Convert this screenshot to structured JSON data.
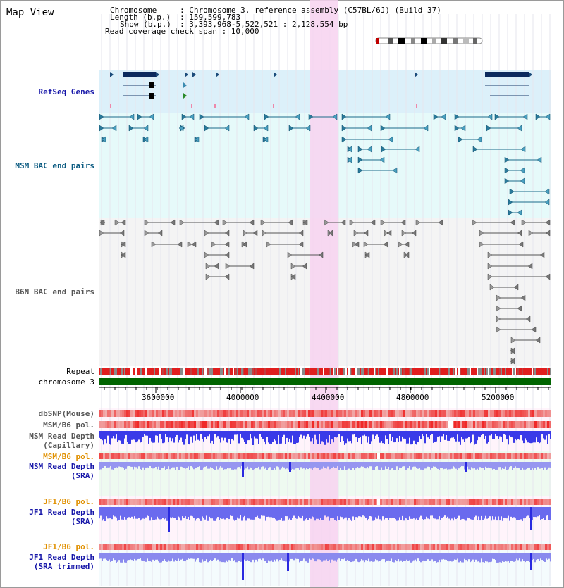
{
  "page_title": "Map View",
  "info": {
    "chromosome_key": "Chromosome",
    "chromosome_val": ": Chromosome 3, reference assembly (C57BL/6J) (Build 37)",
    "length_key": "Length (b.p.)",
    "length_val": ": 159,599,783",
    "show_key": "Show (b.p.)",
    "show_val": ": 3,393,968-5,522,521 : 2,128,554 bp",
    "read_cov": "Read coverage check span : 10,000"
  },
  "tracks": {
    "refseq": "RefSeq Genes",
    "msm_bac": "MSM BAC end pairs",
    "b6n_bac": "B6N BAC end pairs",
    "repeat": "Repeat",
    "chromosome": "chromosome 3",
    "dbsnp": "dbSNP(Mouse)",
    "msm_b6_pol_1": "MSM/B6 pol.",
    "msm_depth_cap_1": "MSM Read Depth",
    "msm_depth_cap_2": "(Capillary)",
    "msm_b6_pol_2": "MSM/B6 pol.",
    "msm_depth_sra_1": "MSM Read Depth",
    "msm_depth_sra_2": "(SRA)",
    "jf1_b6_pol_1": "JF1/B6 pol.",
    "jf1_depth_sra_1": "JF1 Read Depth",
    "jf1_depth_sra_2": "(SRA)",
    "jf1_b6_pol_2": "JF1/B6 pol.",
    "jf1_depth_trim_1": "JF1 Read Depth",
    "jf1_depth_trim_2": "(SRA trimmed)"
  },
  "axis": {
    "ticks": [
      "3600000",
      "4000000",
      "4400000",
      "4800000",
      "5200000"
    ]
  },
  "colors": {
    "refseq_bg": "#dcf0fa",
    "msm_bg": "#e6fafa",
    "b6n_bg": "#f4f4f4",
    "highlight": "#f7d2f0",
    "chromosome_bar": "#006400",
    "depth_blue": "#2828e6",
    "depth_light": "#8a8aee",
    "pol_red": "#e63c3c"
  }
}
